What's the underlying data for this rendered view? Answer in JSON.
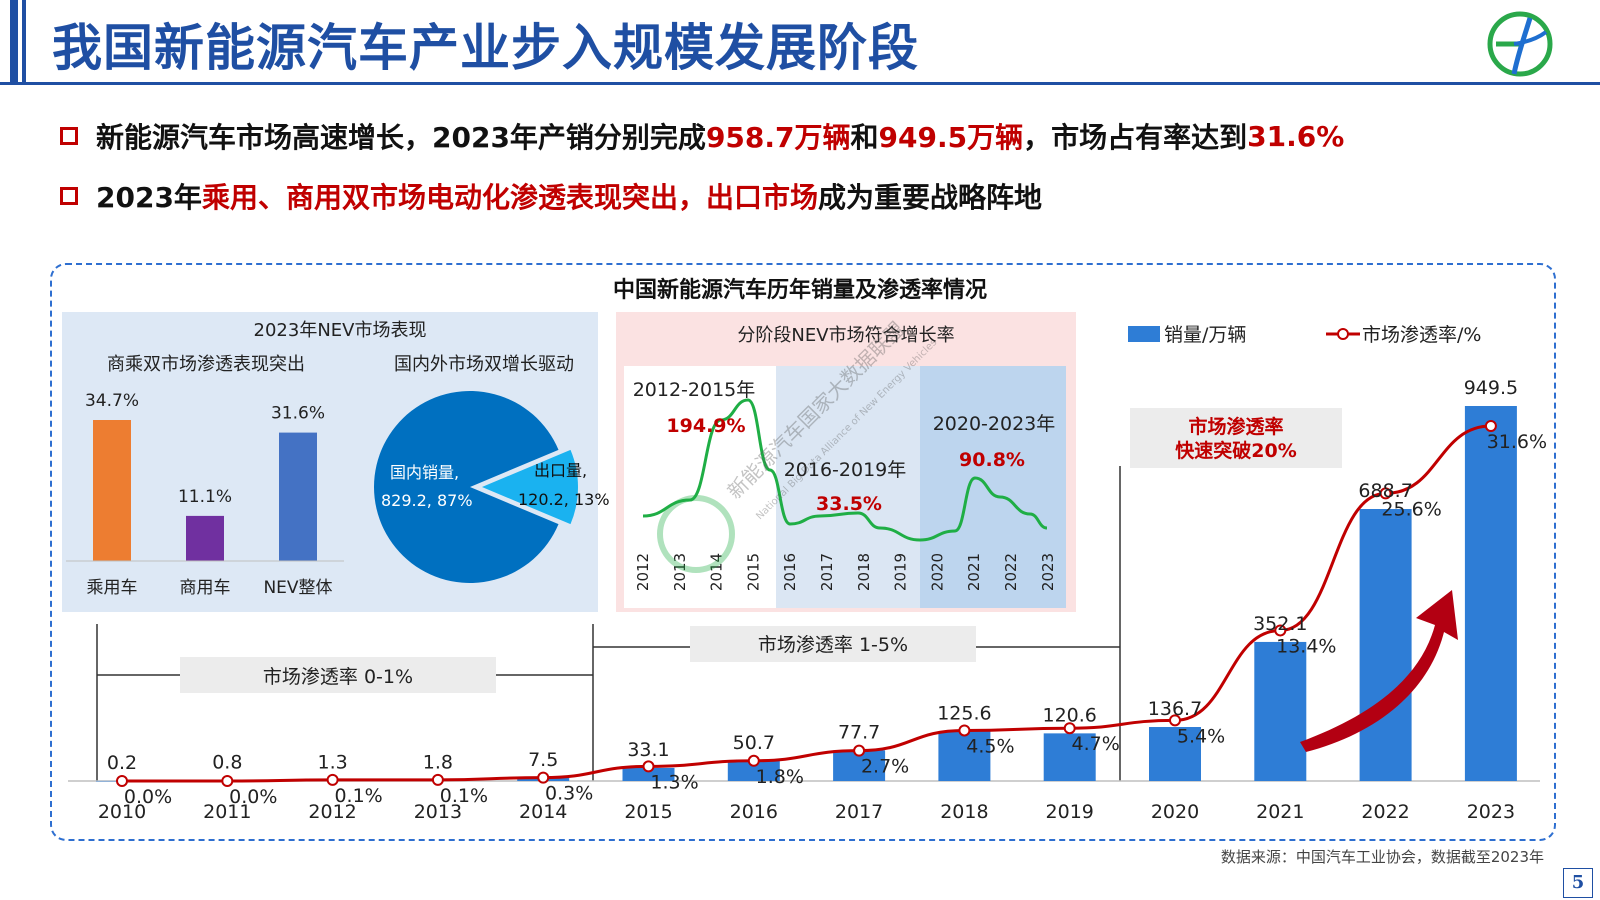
{
  "header": {
    "title": "我国新能源汽车产业步入规模发展阶段",
    "logo_icon": "circle-logo-icon"
  },
  "bullets": [
    {
      "parts": [
        {
          "text": "新能源汽车市场高速增长，2023年产销分别完成",
          "red": false
        },
        {
          "text": "958.7万辆",
          "red": true
        },
        {
          "text": "和",
          "red": false
        },
        {
          "text": "949.5万辆",
          "red": true
        },
        {
          "text": "，市场占有率达到",
          "red": false
        },
        {
          "text": "31.6%",
          "red": true
        }
      ]
    },
    {
      "parts": [
        {
          "text": "2023年",
          "red": false
        },
        {
          "text": "乘用、商用双市场电动化渗透表现突出，出口市场",
          "red": true
        },
        {
          "text": "成为重要战略阵地",
          "red": false
        }
      ]
    }
  ],
  "chart_title": "中国新能源汽车历年销量及渗透率情况",
  "source": "数据来源：中国汽车工业协会，数据截至2023年",
  "page_number": "5",
  "colors": {
    "bar_blue": "#2e7dd6",
    "line_red": "#c00000",
    "orange": "#ed7d31",
    "purple": "#7030a0",
    "nev_blue": "#4472c4",
    "pie_dark": "#0070c0",
    "pie_light": "#1ab2f0",
    "growth_green": "#1fae45"
  },
  "watermark": {
    "text": "新能源汽车国家大数据联盟",
    "subtext": "National Big Data Alliance of New Energy Vehicles"
  },
  "chart_data": [
    {
      "type": "bar",
      "id": "main",
      "categories": [
        "2010",
        "2011",
        "2012",
        "2013",
        "2014",
        "2015",
        "2016",
        "2017",
        "2018",
        "2019",
        "2020",
        "2021",
        "2022",
        "2023"
      ],
      "series": [
        {
          "name": "销量/万辆",
          "type": "bar",
          "values": [
            0.2,
            0.8,
            1.3,
            1.8,
            7.5,
            33.1,
            50.7,
            77.7,
            125.6,
            120.6,
            136.7,
            352.1,
            688.7,
            949.5
          ],
          "labels": [
            "0.2",
            "0.8",
            "1.3",
            "1.8",
            "7.5",
            "33.1",
            "50.7",
            "77.7",
            "125.6",
            "120.6",
            "136.7",
            "352.1",
            "688.7",
            "949.5"
          ]
        },
        {
          "name": "市场渗透率/%",
          "type": "line",
          "values": [
            0.0,
            0.0,
            0.1,
            0.1,
            0.3,
            1.3,
            1.8,
            2.7,
            4.5,
            4.7,
            5.4,
            13.4,
            25.6,
            31.6
          ],
          "labels": [
            "0.0%",
            "0.0%",
            "0.1%",
            "0.1%",
            "0.3%",
            "1.3%",
            "1.8%",
            "2.7%",
            "4.5%",
            "4.7%",
            "5.4%",
            "13.4%",
            "25.6%",
            "31.6%"
          ]
        }
      ],
      "phases": [
        {
          "label": "市场渗透率 0-1%"
        },
        {
          "label": "市场渗透率 1-5%"
        },
        {
          "label": "市场渗透率\n快速突破20%"
        }
      ],
      "legend": "top-right"
    },
    {
      "type": "bar",
      "id": "segment",
      "panel_title": "2023年NEV市场表现",
      "subtitle": "商乘双市场渗透表现突出",
      "categories": [
        "乘用车",
        "商用车",
        "NEV整体"
      ],
      "values": [
        34.7,
        11.1,
        31.6
      ],
      "labels": [
        "34.7%",
        "11.1%",
        "31.6%"
      ]
    },
    {
      "type": "pie",
      "id": "domestic_export",
      "subtitle": "国内外市场双增长驱动",
      "slices": [
        {
          "name": "国内销量,",
          "value": 829.2,
          "label": "829.2, 87%"
        },
        {
          "name": "出口量,",
          "value": 120.2,
          "label": "120.2, 13%"
        }
      ]
    },
    {
      "type": "line",
      "id": "growth",
      "panel_title": "分阶段NEV市场符合增长率",
      "x": [
        "2012",
        "2013",
        "2014",
        "2015",
        "2016",
        "2017",
        "2018",
        "2019",
        "2020",
        "2021",
        "2022",
        "2023"
      ],
      "stages": [
        {
          "period": "2012-2015年",
          "rate": "194.9%"
        },
        {
          "period": "2016-2019年",
          "rate": "33.5%"
        },
        {
          "period": "2020-2023年",
          "rate": "90.8%"
        }
      ]
    }
  ]
}
